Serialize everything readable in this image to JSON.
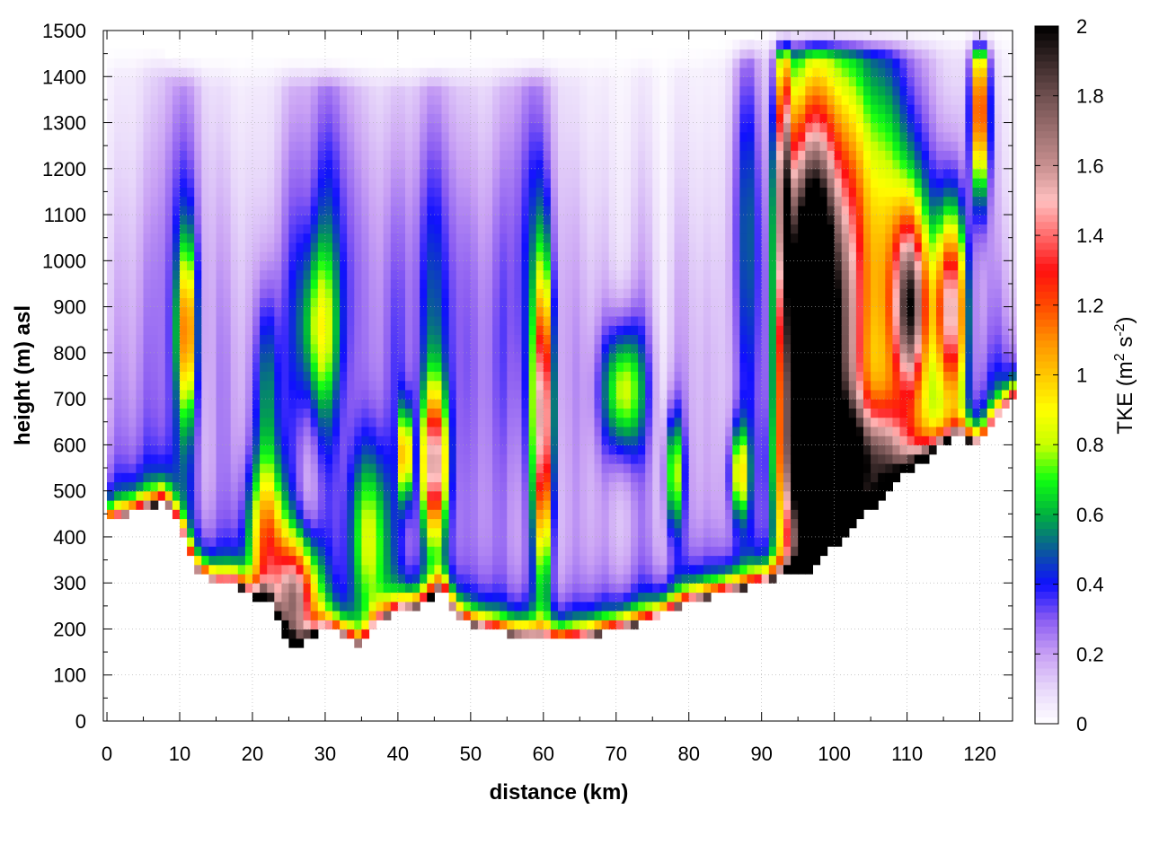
{
  "chart_data": {
    "type": "heatmap",
    "title": "",
    "xlabel": "distance (km)",
    "ylabel": "height (m) asl",
    "xlim": [
      -0.5,
      124.5
    ],
    "ylim": [
      0,
      1500
    ],
    "xticks": [
      "0",
      "10",
      "20",
      "30",
      "40",
      "50",
      "60",
      "70",
      "80",
      "90",
      "100",
      "110",
      "120"
    ],
    "yticks": [
      "0",
      "100",
      "200",
      "300",
      "400",
      "500",
      "600",
      "700",
      "800",
      "900",
      "1000",
      "1100",
      "1200",
      "1300",
      "1400",
      "1500"
    ],
    "grid": true,
    "colorbar": {
      "label_main": "TKE (m",
      "label_sup1": "2",
      "label_mid": " s",
      "label_sup2": "-2",
      "label_end": ")",
      "range": [
        0,
        2
      ],
      "ticks": [
        "0",
        "0.2",
        "0.4",
        "0.6",
        "0.8",
        "1",
        "1.2",
        "1.4",
        "1.6",
        "1.8",
        "2"
      ],
      "stops": [
        [
          0.0,
          "#ffffff"
        ],
        [
          0.1,
          "#e8d8fa"
        ],
        [
          0.2,
          "#c8a0f4"
        ],
        [
          0.3,
          "#8a5cf2"
        ],
        [
          0.4,
          "#1010ff"
        ],
        [
          0.5,
          "#0a5a9a"
        ],
        [
          0.6,
          "#00b040"
        ],
        [
          0.7,
          "#10ff10"
        ],
        [
          0.8,
          "#c8ff00"
        ],
        [
          0.9,
          "#ffff00"
        ],
        [
          1.0,
          "#ffc800"
        ],
        [
          1.1,
          "#ff9000"
        ],
        [
          1.2,
          "#ff4a00"
        ],
        [
          1.3,
          "#ff1010"
        ],
        [
          1.4,
          "#ff6a6a"
        ],
        [
          1.5,
          "#ffc0c0"
        ],
        [
          1.6,
          "#c89090"
        ],
        [
          1.8,
          "#705050"
        ],
        [
          2.0,
          "#000000"
        ]
      ]
    },
    "terrain_km_m": [
      [
        0,
        430
      ],
      [
        5,
        460
      ],
      [
        8,
        480
      ],
      [
        10,
        420
      ],
      [
        12,
        330
      ],
      [
        15,
        300
      ],
      [
        18,
        300
      ],
      [
        19,
        280
      ],
      [
        20,
        270
      ],
      [
        22,
        270
      ],
      [
        24,
        200
      ],
      [
        26,
        160
      ],
      [
        28,
        180
      ],
      [
        30,
        200
      ],
      [
        32,
        190
      ],
      [
        34,
        170
      ],
      [
        35,
        160
      ],
      [
        37,
        210
      ],
      [
        40,
        240
      ],
      [
        43,
        250
      ],
      [
        46,
        290
      ],
      [
        48,
        230
      ],
      [
        50,
        210
      ],
      [
        55,
        190
      ],
      [
        60,
        180
      ],
      [
        62,
        175
      ],
      [
        65,
        180
      ],
      [
        70,
        200
      ],
      [
        75,
        220
      ],
      [
        80,
        260
      ],
      [
        85,
        280
      ],
      [
        90,
        300
      ],
      [
        92,
        310
      ],
      [
        95,
        330
      ],
      [
        97,
        330
      ],
      [
        100,
        380
      ],
      [
        105,
        460
      ],
      [
        110,
        540
      ],
      [
        115,
        600
      ],
      [
        117,
        620
      ],
      [
        120,
        600
      ],
      [
        122,
        650
      ],
      [
        124.5,
        700
      ]
    ],
    "top_km_m": [
      [
        7,
        1460
      ],
      [
        10,
        1440
      ],
      [
        20,
        1440
      ],
      [
        40,
        1430
      ],
      [
        60,
        1440
      ],
      [
        80,
        1460
      ],
      [
        92,
        1500
      ],
      [
        124.5,
        1500
      ]
    ],
    "features_km_m_tke": [
      {
        "x": 11,
        "z": 850,
        "sx": 0.9,
        "sz": 130,
        "tke": 0.75
      },
      {
        "x": 29,
        "z": 850,
        "sx": 1.8,
        "sz": 130,
        "tke": 0.5
      },
      {
        "x": 22,
        "z": 720,
        "sx": 1.2,
        "sz": 160,
        "tke": 0.4
      },
      {
        "x": 60,
        "z": 650,
        "sx": 0.9,
        "sz": 220,
        "tke": 1.3
      },
      {
        "x": 71,
        "z": 720,
        "sx": 2.0,
        "sz": 100,
        "tke": 0.72
      },
      {
        "x": 45,
        "z": 560,
        "sx": 1.2,
        "sz": 110,
        "tke": 1.2
      },
      {
        "x": 41,
        "z": 580,
        "sx": 0.5,
        "sz": 70,
        "tke": 1.1
      },
      {
        "x": 36,
        "z": 400,
        "sx": 2.0,
        "sz": 140,
        "tke": 0.65
      },
      {
        "x": 26,
        "z": 270,
        "sx": 2.2,
        "sz": 90,
        "tke": 1.35
      },
      {
        "x": 22,
        "z": 400,
        "sx": 1.8,
        "sz": 120,
        "tke": 0.9
      },
      {
        "x": 96.5,
        "z": 780,
        "sx": 2.6,
        "sz": 380,
        "tke": 2.6
      },
      {
        "x": 93,
        "z": 1200,
        "sx": 0.8,
        "sz": 220,
        "tke": 1.2
      },
      {
        "x": 101,
        "z": 850,
        "sx": 3.5,
        "sz": 450,
        "tke": 0.95
      },
      {
        "x": 110.5,
        "z": 900,
        "sx": 1.6,
        "sz": 150,
        "tke": 1.45
      },
      {
        "x": 116,
        "z": 900,
        "sx": 1.6,
        "sz": 150,
        "tke": 1.3
      },
      {
        "x": 120,
        "z": 1330,
        "sx": 0.9,
        "sz": 140,
        "tke": 1.3
      },
      {
        "x": 107,
        "z": 1050,
        "sx": 4.5,
        "sz": 350,
        "tke": 0.6
      },
      {
        "x": 87,
        "z": 540,
        "sx": 0.9,
        "sz": 70,
        "tke": 0.7
      },
      {
        "x": 78,
        "z": 540,
        "sx": 0.9,
        "sz": 90,
        "tke": 0.65
      },
      {
        "x": 104,
        "z": 560,
        "sx": 6.0,
        "sz": 90,
        "tke": 1.1
      },
      {
        "x": 88,
        "z": 1150,
        "sx": 1.5,
        "sz": 300,
        "tke": 0.35
      },
      {
        "x": 58,
        "z": 1000,
        "sx": 3,
        "sz": 400,
        "tke": 0.3
      },
      {
        "x": 10,
        "z": 1000,
        "sx": 3,
        "sz": 400,
        "tke": 0.25
      },
      {
        "x": 30,
        "z": 1050,
        "sx": 4,
        "sz": 350,
        "tke": 0.3
      },
      {
        "x": 45,
        "z": 900,
        "sx": 4,
        "sz": 400,
        "tke": 0.28
      }
    ]
  }
}
